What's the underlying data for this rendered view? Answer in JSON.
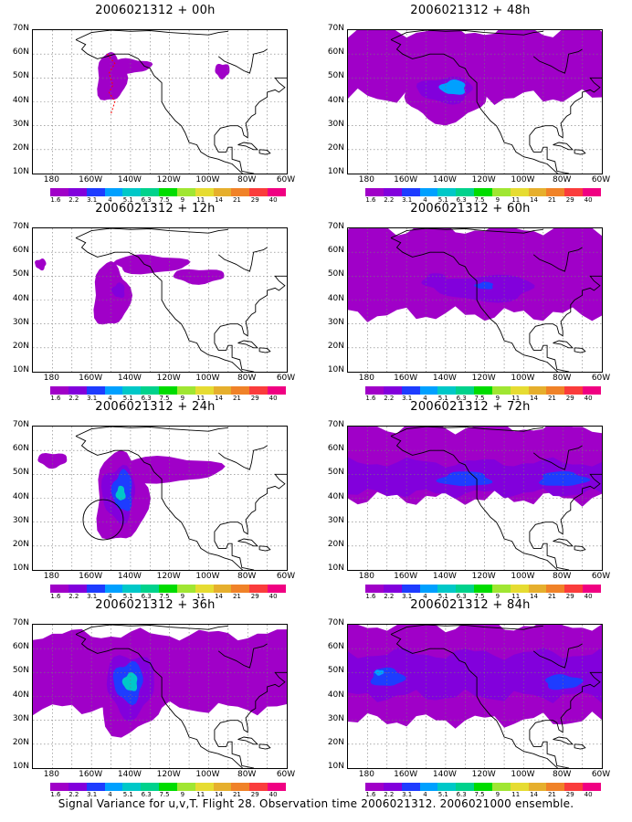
{
  "panels": [
    {
      "title": "2006021312 + 00h",
      "col": 0,
      "row": 0,
      "intensity": 0
    },
    {
      "title": "2006021312 + 12h",
      "col": 0,
      "row": 1,
      "intensity": 1
    },
    {
      "title": "2006021312 + 24h",
      "col": 0,
      "row": 2,
      "intensity": 2
    },
    {
      "title": "2006021312 + 36h",
      "col": 0,
      "row": 3,
      "intensity": 3
    },
    {
      "title": "2006021312 + 48h",
      "col": 1,
      "row": 0,
      "intensity": 4
    },
    {
      "title": "2006021312 + 60h",
      "col": 1,
      "row": 1,
      "intensity": 5
    },
    {
      "title": "2006021312 + 72h",
      "col": 1,
      "row": 2,
      "intensity": 6
    },
    {
      "title": "2006021312 + 84h",
      "col": 1,
      "row": 3,
      "intensity": 7
    }
  ],
  "lat_labels": [
    "70N",
    "60N",
    "50N",
    "40N",
    "30N",
    "20N",
    "10N"
  ],
  "lon_labels": [
    "180",
    "160W",
    "140W",
    "120W",
    "100W",
    "80W",
    "60W"
  ],
  "colorbar": {
    "labels": [
      "1.6",
      "2.2",
      "3.1",
      "4",
      "5.1",
      "6.3",
      "7.5",
      "9",
      "11",
      "14",
      "21",
      "29",
      "40"
    ],
    "colors": [
      "#a000c8",
      "#8200dc",
      "#1e3cff",
      "#00a0ff",
      "#00c8c8",
      "#00d28c",
      "#00dc00",
      "#a0e632",
      "#e6dc32",
      "#e6af2d",
      "#f08228",
      "#fa3c3c",
      "#f00082"
    ]
  },
  "caption": "Signal Variance for u,v,T. Flight 28. Observation time 2006021312. 2006021000 ensemble."
}
